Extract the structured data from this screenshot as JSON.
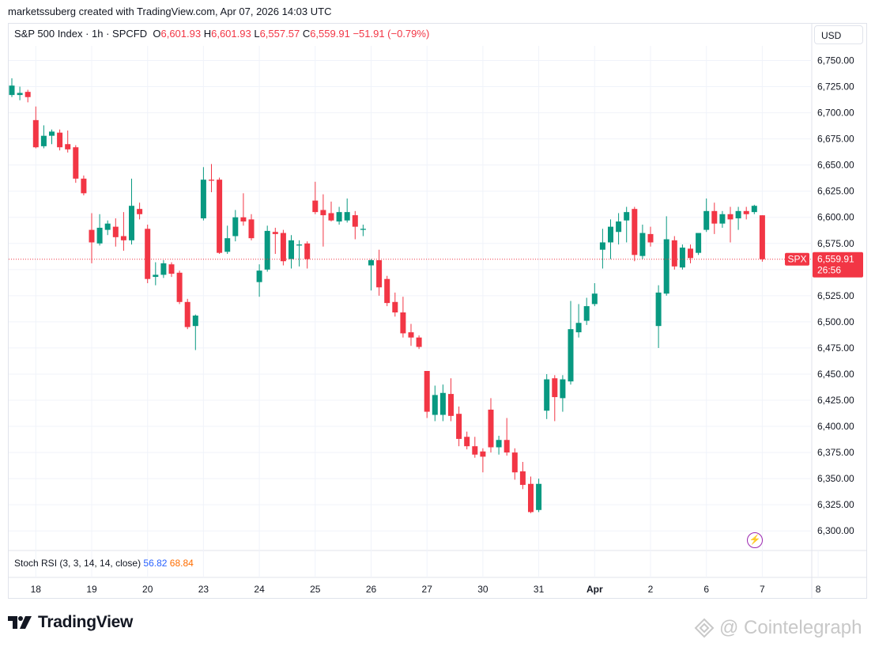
{
  "header": {
    "created_by": "marketssuberg created with TradingView.com, Apr 07, 2026 14:03 UTC"
  },
  "legend": {
    "symbol": "S&P 500 Index · 1h · SPCFD",
    "o_label": "O",
    "o_value": "6,601.93",
    "h_label": "H",
    "h_value": "6,601.93",
    "l_label": "L",
    "l_value": "6,557.57",
    "c_label": "C",
    "c_value": "6,559.91",
    "change": "−51.91 (−0.79%)"
  },
  "currency": "USD",
  "price_tag": {
    "symbol": "SPX",
    "price": "6,559.91",
    "countdown": "26:56"
  },
  "indicator": {
    "label": "Stoch RSI (3, 3, 14, 14, close)",
    "k": "56.82",
    "d": "68.84"
  },
  "brand": {
    "name": "TradingView"
  },
  "watermark": {
    "text": "@ Cointelegraph"
  },
  "icons": {
    "alert": "lightning-icon"
  },
  "colors": {
    "up": "#089981",
    "down": "#f23645",
    "grid": "#f0f3fa",
    "axis_text": "#131722"
  },
  "chart_data": {
    "type": "candlestick",
    "title": "S&P 500 Index · 1h · SPCFD",
    "y_ticks": [
      "6,750.00",
      "6,725.00",
      "6,700.00",
      "6,675.00",
      "6,650.00",
      "6,625.00",
      "6,600.00",
      "6,575.00",
      "6,550.00",
      "6,525.00",
      "6,500.00",
      "6,475.00",
      "6,450.00",
      "6,425.00",
      "6,400.00",
      "6,375.00",
      "6,350.00",
      "6,325.00",
      "6,300.00"
    ],
    "y_tick_values": [
      6750,
      6725,
      6700,
      6675,
      6650,
      6625,
      6600,
      6575,
      6550,
      6525,
      6500,
      6475,
      6450,
      6425,
      6400,
      6375,
      6350,
      6325,
      6300
    ],
    "ylim": [
      6282,
      6764
    ],
    "x_ticks": [
      "18",
      "19",
      "20",
      "23",
      "24",
      "25",
      "26",
      "27",
      "30",
      "31",
      "Apr",
      "2",
      "6",
      "7",
      "8"
    ],
    "x_tick_index": [
      3,
      10,
      17,
      24,
      31,
      38,
      45,
      52,
      59,
      66,
      73,
      80,
      87,
      94,
      101
    ],
    "last_price": 6559.91,
    "candles": [
      {
        "o": 6717,
        "h": 6733,
        "l": 6715,
        "c": 6726
      },
      {
        "o": 6717,
        "h": 6725,
        "l": 6712,
        "c": 6719
      },
      {
        "o": 6720,
        "h": 6722,
        "l": 6710,
        "c": 6715
      },
      {
        "o": 6693,
        "h": 6706,
        "l": 6666,
        "c": 6667
      },
      {
        "o": 6668,
        "h": 6688,
        "l": 6666,
        "c": 6678
      },
      {
        "o": 6678,
        "h": 6684,
        "l": 6670,
        "c": 6682
      },
      {
        "o": 6681,
        "h": 6684,
        "l": 6664,
        "c": 6667
      },
      {
        "o": 6670,
        "h": 6683,
        "l": 6662,
        "c": 6665
      },
      {
        "o": 6667,
        "h": 6669,
        "l": 6633,
        "c": 6637
      },
      {
        "o": 6637,
        "h": 6640,
        "l": 6621,
        "c": 6623
      },
      {
        "o": 6588,
        "h": 6604,
        "l": 6556,
        "c": 6576
      },
      {
        "o": 6575,
        "h": 6603,
        "l": 6573,
        "c": 6590
      },
      {
        "o": 6588,
        "h": 6597,
        "l": 6583,
        "c": 6594
      },
      {
        "o": 6591,
        "h": 6599,
        "l": 6572,
        "c": 6581
      },
      {
        "o": 6582,
        "h": 6605,
        "l": 6568,
        "c": 6578
      },
      {
        "o": 6578,
        "h": 6637,
        "l": 6574,
        "c": 6611
      },
      {
        "o": 6608,
        "h": 6614,
        "l": 6598,
        "c": 6603
      },
      {
        "o": 6589,
        "h": 6593,
        "l": 6537,
        "c": 6541
      },
      {
        "o": 6543,
        "h": 6557,
        "l": 6535,
        "c": 6545
      },
      {
        "o": 6545,
        "h": 6559,
        "l": 6542,
        "c": 6556
      },
      {
        "o": 6555,
        "h": 6557,
        "l": 6543,
        "c": 6546
      },
      {
        "o": 6547,
        "h": 6549,
        "l": 6517,
        "c": 6519
      },
      {
        "o": 6519,
        "h": 6522,
        "l": 6493,
        "c": 6495
      },
      {
        "o": 6496,
        "h": 6507,
        "l": 6473,
        "c": 6506
      },
      {
        "o": 6599,
        "h": 6648,
        "l": 6597,
        "c": 6636
      },
      {
        "o": 6636,
        "h": 6651,
        "l": 6624,
        "c": 6635
      },
      {
        "o": 6636,
        "h": 6638,
        "l": 6565,
        "c": 6566
      },
      {
        "o": 6567,
        "h": 6592,
        "l": 6565,
        "c": 6580
      },
      {
        "o": 6582,
        "h": 6607,
        "l": 6577,
        "c": 6600
      },
      {
        "o": 6600,
        "h": 6623,
        "l": 6592,
        "c": 6596
      },
      {
        "o": 6598,
        "h": 6603,
        "l": 6578,
        "c": 6580
      },
      {
        "o": 6538,
        "h": 6555,
        "l": 6524,
        "c": 6549
      },
      {
        "o": 6550,
        "h": 6592,
        "l": 6548,
        "c": 6587
      },
      {
        "o": 6586,
        "h": 6590,
        "l": 6565,
        "c": 6584
      },
      {
        "o": 6585,
        "h": 6588,
        "l": 6554,
        "c": 6558
      },
      {
        "o": 6560,
        "h": 6583,
        "l": 6551,
        "c": 6578
      },
      {
        "o": 6573,
        "h": 6578,
        "l": 6553,
        "c": 6574
      },
      {
        "o": 6575,
        "h": 6577,
        "l": 6551,
        "c": 6560
      },
      {
        "o": 6616,
        "h": 6634,
        "l": 6603,
        "c": 6605
      },
      {
        "o": 6607,
        "h": 6622,
        "l": 6572,
        "c": 6602
      },
      {
        "o": 6604,
        "h": 6615,
        "l": 6596,
        "c": 6597
      },
      {
        "o": 6596,
        "h": 6610,
        "l": 6593,
        "c": 6605
      },
      {
        "o": 6597,
        "h": 6618,
        "l": 6595,
        "c": 6605
      },
      {
        "o": 6602,
        "h": 6606,
        "l": 6579,
        "c": 6591
      },
      {
        "o": 6588,
        "h": 6593,
        "l": 6582,
        "c": 6589
      },
      {
        "o": 6554,
        "h": 6560,
        "l": 6530,
        "c": 6559
      },
      {
        "o": 6559,
        "h": 6569,
        "l": 6525,
        "c": 6533
      },
      {
        "o": 6541,
        "h": 6544,
        "l": 6515,
        "c": 6518
      },
      {
        "o": 6519,
        "h": 6528,
        "l": 6505,
        "c": 6509
      },
      {
        "o": 6509,
        "h": 6524,
        "l": 6485,
        "c": 6489
      },
      {
        "o": 6490,
        "h": 6498,
        "l": 6477,
        "c": 6485
      },
      {
        "o": 6485,
        "h": 6487,
        "l": 6474,
        "c": 6476
      },
      {
        "o": 6453,
        "h": 6453,
        "l": 6408,
        "c": 6414
      },
      {
        "o": 6411,
        "h": 6439,
        "l": 6405,
        "c": 6430
      },
      {
        "o": 6411,
        "h": 6440,
        "l": 6405,
        "c": 6432
      },
      {
        "o": 6431,
        "h": 6446,
        "l": 6405,
        "c": 6410
      },
      {
        "o": 6412,
        "h": 6419,
        "l": 6381,
        "c": 6388
      },
      {
        "o": 6390,
        "h": 6395,
        "l": 6378,
        "c": 6381
      },
      {
        "o": 6381,
        "h": 6390,
        "l": 6370,
        "c": 6373
      },
      {
        "o": 6376,
        "h": 6379,
        "l": 6356,
        "c": 6371
      },
      {
        "o": 6416,
        "h": 6427,
        "l": 6375,
        "c": 6380
      },
      {
        "o": 6380,
        "h": 6391,
        "l": 6373,
        "c": 6387
      },
      {
        "o": 6387,
        "h": 6408,
        "l": 6372,
        "c": 6375
      },
      {
        "o": 6375,
        "h": 6379,
        "l": 6349,
        "c": 6356
      },
      {
        "o": 6357,
        "h": 6366,
        "l": 6340,
        "c": 6344
      },
      {
        "o": 6345,
        "h": 6352,
        "l": 6317,
        "c": 6318
      },
      {
        "o": 6320,
        "h": 6350,
        "l": 6318,
        "c": 6345
      },
      {
        "o": 6415,
        "h": 6450,
        "l": 6407,
        "c": 6445
      },
      {
        "o": 6446,
        "h": 6449,
        "l": 6405,
        "c": 6428
      },
      {
        "o": 6427,
        "h": 6449,
        "l": 6414,
        "c": 6445
      },
      {
        "o": 6443,
        "h": 6520,
        "l": 6440,
        "c": 6493
      },
      {
        "o": 6490,
        "h": 6517,
        "l": 6485,
        "c": 6499
      },
      {
        "o": 6501,
        "h": 6523,
        "l": 6497,
        "c": 6515
      },
      {
        "o": 6517,
        "h": 6537,
        "l": 6515,
        "c": 6527
      },
      {
        "o": 6569,
        "h": 6589,
        "l": 6551,
        "c": 6576
      },
      {
        "o": 6576,
        "h": 6598,
        "l": 6560,
        "c": 6591
      },
      {
        "o": 6586,
        "h": 6604,
        "l": 6574,
        "c": 6596
      },
      {
        "o": 6597,
        "h": 6610,
        "l": 6576,
        "c": 6605
      },
      {
        "o": 6608,
        "h": 6610,
        "l": 6558,
        "c": 6564
      },
      {
        "o": 6563,
        "h": 6593,
        "l": 6560,
        "c": 6585
      },
      {
        "o": 6584,
        "h": 6591,
        "l": 6572,
        "c": 6576
      },
      {
        "o": 6496,
        "h": 6535,
        "l": 6475,
        "c": 6528
      },
      {
        "o": 6527,
        "h": 6601,
        "l": 6525,
        "c": 6579
      },
      {
        "o": 6578,
        "h": 6582,
        "l": 6550,
        "c": 6553
      },
      {
        "o": 6552,
        "h": 6574,
        "l": 6550,
        "c": 6571
      },
      {
        "o": 6570,
        "h": 6574,
        "l": 6556,
        "c": 6561
      },
      {
        "o": 6566,
        "h": 6582,
        "l": 6564,
        "c": 6585
      },
      {
        "o": 6588,
        "h": 6618,
        "l": 6586,
        "c": 6606
      },
      {
        "o": 6606,
        "h": 6614,
        "l": 6584,
        "c": 6594
      },
      {
        "o": 6594,
        "h": 6606,
        "l": 6590,
        "c": 6603
      },
      {
        "o": 6603,
        "h": 6610,
        "l": 6576,
        "c": 6598
      },
      {
        "o": 6599,
        "h": 6610,
        "l": 6588,
        "c": 6606
      },
      {
        "o": 6606,
        "h": 6610,
        "l": 6598,
        "c": 6603
      },
      {
        "o": 6605,
        "h": 6612,
        "l": 6603,
        "c": 6611
      },
      {
        "o": 6601.93,
        "h": 6601.93,
        "l": 6557.57,
        "c": 6559.91
      }
    ]
  }
}
